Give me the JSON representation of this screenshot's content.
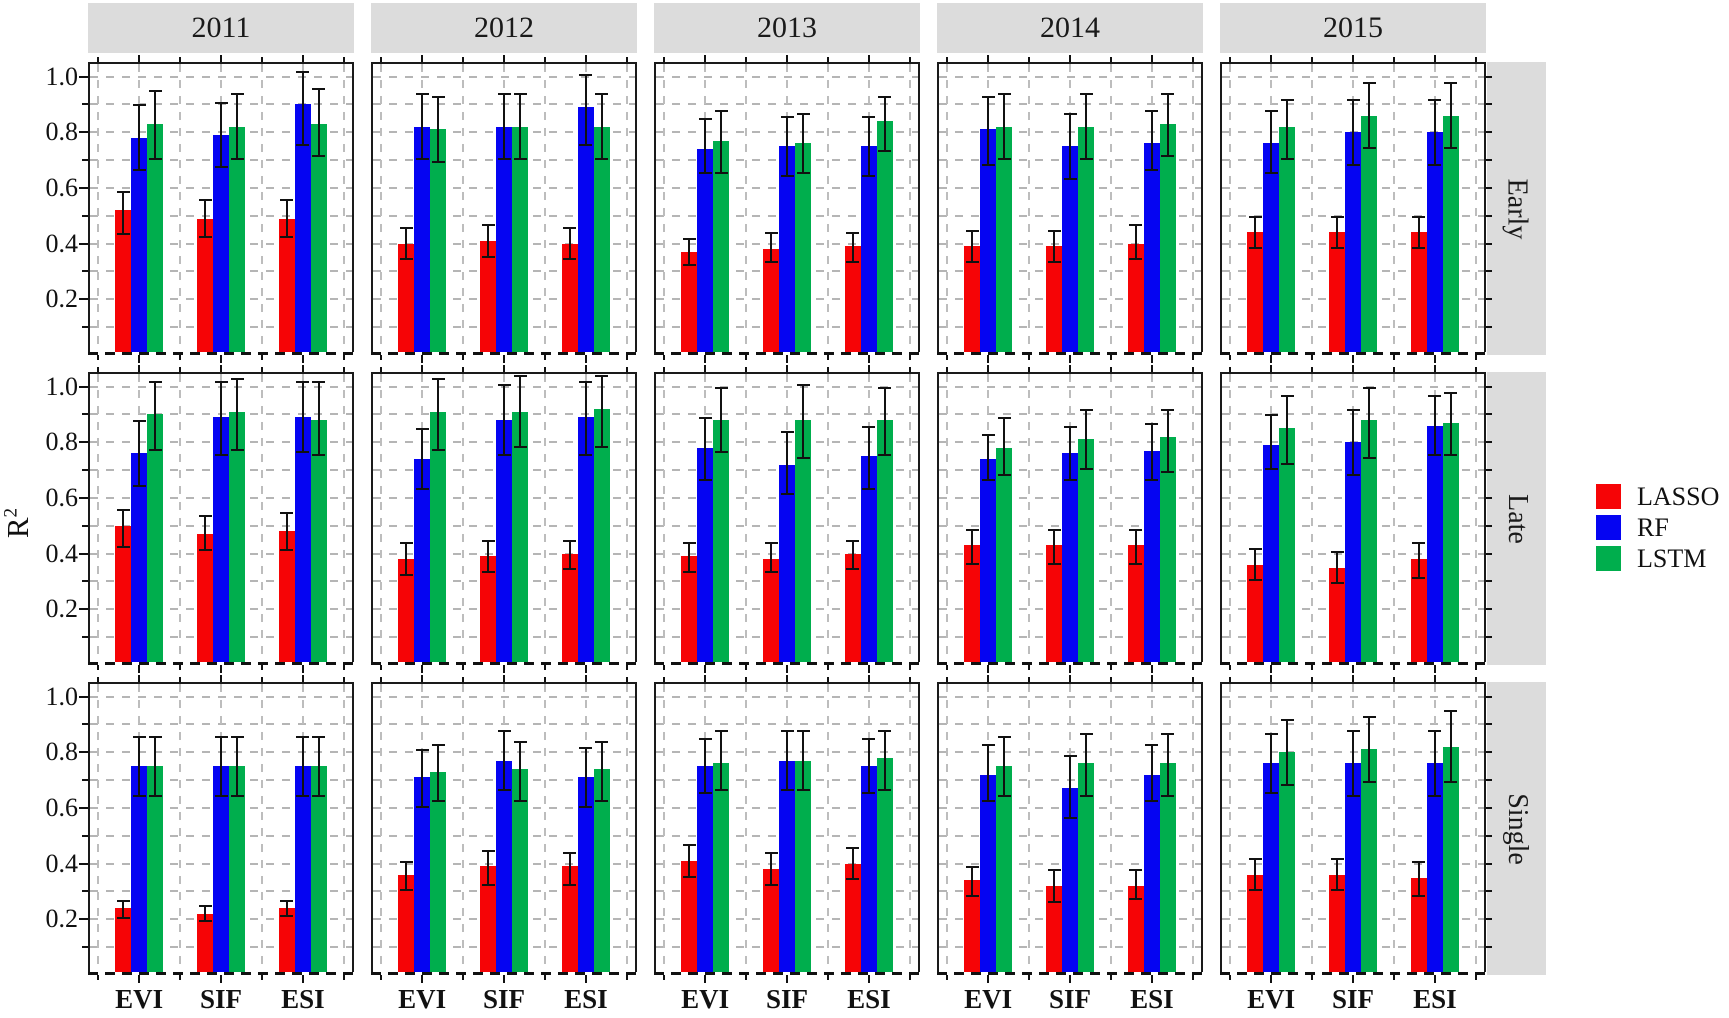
{
  "chart_data": {
    "type": "bar",
    "title": "",
    "ylabel_base": "R",
    "ylabel_exponent": "2",
    "facet_cols": [
      "2011",
      "2012",
      "2013",
      "2014",
      "2015"
    ],
    "facet_rows": [
      "Early",
      "Late",
      "Single"
    ],
    "categories": [
      "EVI",
      "SIF",
      "ESI"
    ],
    "series": [
      {
        "name": "LASSO",
        "color": "#f60406"
      },
      {
        "name": "RF",
        "color": "#0504f2"
      },
      {
        "name": "LSTM",
        "color": "#00ae4d"
      }
    ],
    "legend_position": "right",
    "grid": "dashed-gray",
    "ylim": [
      0,
      1.045
    ],
    "ytick_labels": [
      "1.0",
      "0.8",
      "0.6",
      "0.4",
      "0.2"
    ],
    "ytick_values": [
      1.0,
      0.8,
      0.6,
      0.4,
      0.2
    ],
    "error_bars": true,
    "strip_bg": "#dcdcdc",
    "values_format": "[value, err_low, err_high] per series LASSO/RF/LSTM, per category EVI/SIF/ESI",
    "values": {
      "Early": {
        "2011": [
          [
            [
              0.52,
              0.43,
              0.59
            ],
            [
              0.78,
              0.66,
              0.9
            ],
            [
              0.83,
              0.7,
              0.95
            ]
          ],
          [
            [
              0.49,
              0.42,
              0.56
            ],
            [
              0.79,
              0.67,
              0.91
            ],
            [
              0.82,
              0.7,
              0.94
            ]
          ],
          [
            [
              0.49,
              0.42,
              0.56
            ],
            [
              0.9,
              0.75,
              1.02
            ],
            [
              0.83,
              0.71,
              0.96
            ]
          ]
        ],
        "2012": [
          [
            [
              0.4,
              0.34,
              0.46
            ],
            [
              0.82,
              0.7,
              0.94
            ],
            [
              0.81,
              0.69,
              0.93
            ]
          ],
          [
            [
              0.41,
              0.35,
              0.47
            ],
            [
              0.82,
              0.7,
              0.94
            ],
            [
              0.82,
              0.7,
              0.94
            ]
          ],
          [
            [
              0.4,
              0.34,
              0.46
            ],
            [
              0.89,
              0.75,
              1.01
            ],
            [
              0.82,
              0.7,
              0.94
            ]
          ]
        ],
        "2013": [
          [
            [
              0.37,
              0.32,
              0.42
            ],
            [
              0.74,
              0.65,
              0.85
            ],
            [
              0.77,
              0.65,
              0.88
            ]
          ],
          [
            [
              0.38,
              0.33,
              0.44
            ],
            [
              0.75,
              0.64,
              0.86
            ],
            [
              0.76,
              0.65,
              0.87
            ]
          ],
          [
            [
              0.39,
              0.33,
              0.44
            ],
            [
              0.75,
              0.64,
              0.86
            ],
            [
              0.84,
              0.73,
              0.93
            ]
          ]
        ],
        "2014": [
          [
            [
              0.39,
              0.33,
              0.45
            ],
            [
              0.81,
              0.68,
              0.93
            ],
            [
              0.82,
              0.7,
              0.94
            ]
          ],
          [
            [
              0.39,
              0.33,
              0.45
            ],
            [
              0.75,
              0.63,
              0.87
            ],
            [
              0.82,
              0.7,
              0.94
            ]
          ],
          [
            [
              0.4,
              0.34,
              0.47
            ],
            [
              0.76,
              0.66,
              0.88
            ],
            [
              0.83,
              0.71,
              0.94
            ]
          ]
        ],
        "2015": [
          [
            [
              0.44,
              0.38,
              0.5
            ],
            [
              0.76,
              0.65,
              0.88
            ],
            [
              0.82,
              0.7,
              0.92
            ]
          ],
          [
            [
              0.44,
              0.38,
              0.5
            ],
            [
              0.8,
              0.68,
              0.92
            ],
            [
              0.86,
              0.74,
              0.98
            ]
          ],
          [
            [
              0.44,
              0.38,
              0.5
            ],
            [
              0.8,
              0.68,
              0.92
            ],
            [
              0.86,
              0.74,
              0.98
            ]
          ]
        ]
      },
      "Late": {
        "2011": [
          [
            [
              0.5,
              0.42,
              0.56
            ],
            [
              0.76,
              0.64,
              0.88
            ],
            [
              0.9,
              0.77,
              1.02
            ]
          ],
          [
            [
              0.47,
              0.41,
              0.54
            ],
            [
              0.89,
              0.75,
              1.02
            ],
            [
              0.91,
              0.77,
              1.03
            ]
          ],
          [
            [
              0.48,
              0.41,
              0.55
            ],
            [
              0.89,
              0.76,
              1.02
            ],
            [
              0.88,
              0.75,
              1.02
            ]
          ]
        ],
        "2012": [
          [
            [
              0.38,
              0.32,
              0.44
            ],
            [
              0.74,
              0.63,
              0.85
            ],
            [
              0.91,
              0.77,
              1.03
            ]
          ],
          [
            [
              0.39,
              0.33,
              0.45
            ],
            [
              0.88,
              0.75,
              1.01
            ],
            [
              0.91,
              0.78,
              1.04
            ]
          ],
          [
            [
              0.4,
              0.34,
              0.45
            ],
            [
              0.89,
              0.75,
              1.02
            ],
            [
              0.92,
              0.78,
              1.04
            ]
          ]
        ],
        "2013": [
          [
            [
              0.39,
              0.33,
              0.44
            ],
            [
              0.78,
              0.66,
              0.89
            ],
            [
              0.88,
              0.76,
              1.0
            ]
          ],
          [
            [
              0.38,
              0.33,
              0.44
            ],
            [
              0.72,
              0.61,
              0.84
            ],
            [
              0.88,
              0.74,
              1.01
            ]
          ],
          [
            [
              0.4,
              0.34,
              0.45
            ],
            [
              0.75,
              0.63,
              0.86
            ],
            [
              0.88,
              0.75,
              1.0
            ]
          ]
        ],
        "2014": [
          [
            [
              0.43,
              0.36,
              0.49
            ],
            [
              0.74,
              0.66,
              0.83
            ],
            [
              0.78,
              0.68,
              0.89
            ]
          ],
          [
            [
              0.43,
              0.36,
              0.49
            ],
            [
              0.76,
              0.66,
              0.86
            ],
            [
              0.81,
              0.7,
              0.92
            ]
          ],
          [
            [
              0.43,
              0.36,
              0.49
            ],
            [
              0.77,
              0.66,
              0.87
            ],
            [
              0.82,
              0.69,
              0.92
            ]
          ]
        ],
        "2015": [
          [
            [
              0.36,
              0.3,
              0.42
            ],
            [
              0.79,
              0.7,
              0.9
            ],
            [
              0.85,
              0.72,
              0.97
            ]
          ],
          [
            [
              0.35,
              0.29,
              0.41
            ],
            [
              0.8,
              0.68,
              0.92
            ],
            [
              0.88,
              0.74,
              1.0
            ]
          ],
          [
            [
              0.38,
              0.31,
              0.44
            ],
            [
              0.86,
              0.75,
              0.97
            ],
            [
              0.87,
              0.75,
              0.98
            ]
          ]
        ]
      },
      "Single": {
        "2011": [
          [
            [
              0.24,
              0.2,
              0.27
            ],
            [
              0.75,
              0.64,
              0.86
            ],
            [
              0.75,
              0.64,
              0.86
            ]
          ],
          [
            [
              0.22,
              0.19,
              0.25
            ],
            [
              0.75,
              0.64,
              0.86
            ],
            [
              0.75,
              0.64,
              0.86
            ]
          ],
          [
            [
              0.24,
              0.21,
              0.27
            ],
            [
              0.75,
              0.64,
              0.86
            ],
            [
              0.75,
              0.64,
              0.86
            ]
          ]
        ],
        "2012": [
          [
            [
              0.36,
              0.3,
              0.41
            ],
            [
              0.71,
              0.6,
              0.81
            ],
            [
              0.73,
              0.62,
              0.83
            ]
          ],
          [
            [
              0.39,
              0.32,
              0.45
            ],
            [
              0.77,
              0.66,
              0.88
            ],
            [
              0.74,
              0.62,
              0.84
            ]
          ],
          [
            [
              0.39,
              0.32,
              0.44
            ],
            [
              0.71,
              0.6,
              0.82
            ],
            [
              0.74,
              0.62,
              0.84
            ]
          ]
        ],
        "2013": [
          [
            [
              0.41,
              0.35,
              0.47
            ],
            [
              0.75,
              0.65,
              0.85
            ],
            [
              0.76,
              0.66,
              0.88
            ]
          ],
          [
            [
              0.38,
              0.32,
              0.44
            ],
            [
              0.77,
              0.66,
              0.88
            ],
            [
              0.77,
              0.66,
              0.88
            ]
          ],
          [
            [
              0.4,
              0.34,
              0.46
            ],
            [
              0.75,
              0.65,
              0.85
            ],
            [
              0.78,
              0.66,
              0.88
            ]
          ]
        ],
        "2014": [
          [
            [
              0.34,
              0.28,
              0.39
            ],
            [
              0.72,
              0.62,
              0.83
            ],
            [
              0.75,
              0.64,
              0.86
            ]
          ],
          [
            [
              0.32,
              0.26,
              0.38
            ],
            [
              0.67,
              0.56,
              0.79
            ],
            [
              0.76,
              0.64,
              0.87
            ]
          ],
          [
            [
              0.32,
              0.27,
              0.38
            ],
            [
              0.72,
              0.62,
              0.83
            ],
            [
              0.76,
              0.64,
              0.87
            ]
          ]
        ],
        "2015": [
          [
            [
              0.36,
              0.3,
              0.42
            ],
            [
              0.76,
              0.65,
              0.87
            ],
            [
              0.8,
              0.68,
              0.92
            ]
          ],
          [
            [
              0.36,
              0.3,
              0.42
            ],
            [
              0.76,
              0.64,
              0.88
            ],
            [
              0.81,
              0.69,
              0.93
            ]
          ],
          [
            [
              0.35,
              0.28,
              0.41
            ],
            [
              0.76,
              0.64,
              0.88
            ],
            [
              0.82,
              0.69,
              0.95
            ]
          ]
        ]
      }
    }
  }
}
